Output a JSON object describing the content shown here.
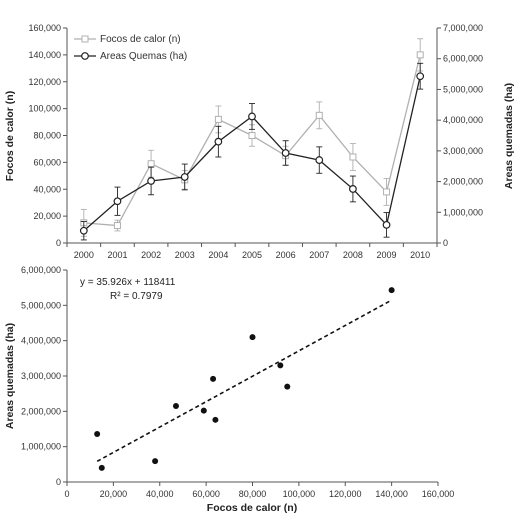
{
  "chart_data": [
    {
      "type": "line",
      "x": [
        "2000",
        "2001",
        "2002",
        "2003",
        "2004",
        "2005",
        "2006",
        "2007",
        "2008",
        "2009",
        "2010"
      ],
      "ylabel_left": "Focos de calor (n)",
      "ylabel_right": "Areas  quemadas  (ha)",
      "ylim_left": [
        0,
        160000
      ],
      "ylim_right": [
        0,
        7000000
      ],
      "yticks_left": [
        "0",
        "20,000",
        "40,000",
        "60,000",
        "80,000",
        "100,000",
        "120,000",
        "140,000",
        "160,000"
      ],
      "yticks_right": [
        "0",
        "1,000,000",
        "2,000,000",
        "3,000,000",
        "4,000,000",
        "5,000,000",
        "6,000,000",
        "7,000,000"
      ],
      "legend_position": "top-left",
      "grid": false,
      "series": [
        {
          "name": "Focos de calor (n)",
          "axis": "left",
          "color": "#b0b0b0",
          "marker": "square",
          "values": [
            15000,
            13000,
            59000,
            47000,
            92000,
            80000,
            65000,
            95000,
            64000,
            38000,
            140000
          ],
          "error": [
            10000,
            4000,
            10000,
            7000,
            10000,
            8000,
            7000,
            10000,
            10000,
            10000,
            12000
          ]
        },
        {
          "name": "Areas Quemas (ha)",
          "axis": "right",
          "color": "#222222",
          "marker": "circle",
          "values": [
            400000,
            1360000,
            2020000,
            2150000,
            3300000,
            4120000,
            2930000,
            2700000,
            1760000,
            590000,
            5430000
          ],
          "error": [
            300000,
            460000,
            450000,
            420000,
            500000,
            420000,
            400000,
            430000,
            420000,
            400000,
            420000
          ]
        }
      ]
    },
    {
      "type": "scatter",
      "xlabel": "Focos de calor (n)",
      "ylabel": "Areas  quemadas  (ha)",
      "xlim": [
        0,
        160000
      ],
      "ylim": [
        0,
        6000000
      ],
      "xticks": [
        "0",
        "20,000",
        "40,000",
        "60,000",
        "80,000",
        "100,000",
        "120,000",
        "140,000",
        "160,000"
      ],
      "yticks": [
        "0",
        "1,000,000",
        "2,000,000",
        "3,000,000",
        "4,000,000",
        "5,000,000",
        "6,000,000"
      ],
      "grid": false,
      "points": [
        {
          "x": 13000,
          "y": 1360000
        },
        {
          "x": 15000,
          "y": 400000
        },
        {
          "x": 38000,
          "y": 590000
        },
        {
          "x": 47000,
          "y": 2150000
        },
        {
          "x": 59000,
          "y": 2020000
        },
        {
          "x": 63000,
          "y": 2920000
        },
        {
          "x": 64000,
          "y": 1760000
        },
        {
          "x": 80000,
          "y": 4100000
        },
        {
          "x": 92000,
          "y": 3300000
        },
        {
          "x": 95000,
          "y": 2700000
        },
        {
          "x": 140000,
          "y": 5430000
        }
      ],
      "trendline": {
        "slope": 35.926,
        "intercept": 118411,
        "x_range": [
          13000,
          140000
        ],
        "style": "dashed"
      },
      "annotation": {
        "equation": "y = 35.926x + 118411",
        "r2": "R² = 0.7979"
      }
    }
  ]
}
